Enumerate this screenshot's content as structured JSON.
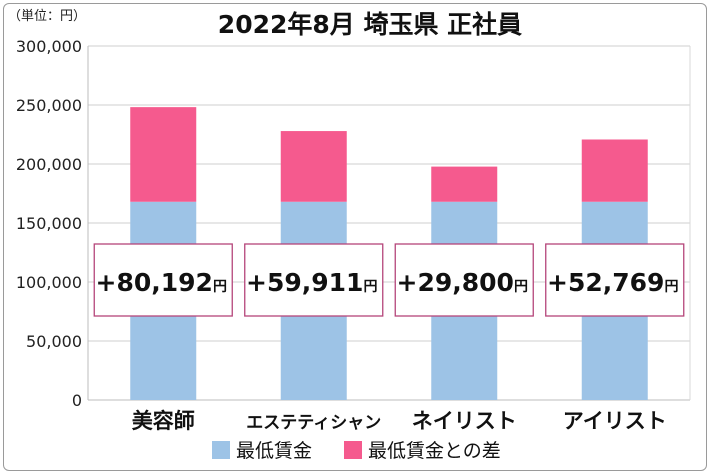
{
  "chart_data": {
    "type": "bar",
    "stacked": true,
    "title": "2022年8月 埼玉県 正社員",
    "unit_label": "（単位：円）",
    "categories": [
      "美容師",
      "エステティシャン",
      "ネイリスト",
      "アイリスト"
    ],
    "series": [
      {
        "name": "最低賃金",
        "color": "#9dc3e6",
        "values": [
          168000,
          168000,
          168000,
          168000
        ]
      },
      {
        "name": "最低賃金との差",
        "color": "#f55a8e",
        "values": [
          80192,
          59911,
          29800,
          52769
        ]
      }
    ],
    "annotations": [
      {
        "main": "+80,192",
        "unit": "円"
      },
      {
        "main": "+59,911",
        "unit": "円"
      },
      {
        "main": "+29,800",
        "unit": "円"
      },
      {
        "main": "+52,769",
        "unit": "円"
      }
    ],
    "y_ticks": [
      "0",
      "50,000",
      "100,000",
      "150,000",
      "200,000",
      "250,000",
      "300,000"
    ],
    "ylim": [
      0,
      300000
    ],
    "grid": true,
    "legend_position": "bottom"
  }
}
